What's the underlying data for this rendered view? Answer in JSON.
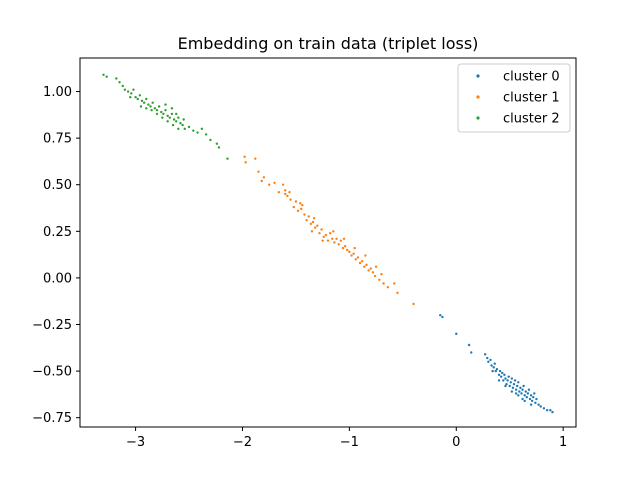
{
  "chart_data": {
    "type": "scatter",
    "title": "Embedding on train data (triplet loss)",
    "xlabel": "",
    "ylabel": "",
    "xlim": [
      -3.52,
      1.12
    ],
    "ylim": [
      -0.8,
      1.18
    ],
    "xticks": [
      -3,
      -2,
      -1,
      0,
      1
    ],
    "xtick_labels": [
      "−3",
      "−2",
      "−1",
      "0",
      "1"
    ],
    "yticks": [
      -0.75,
      -0.5,
      -0.25,
      0.0,
      0.25,
      0.5,
      0.75,
      1.0
    ],
    "ytick_labels": [
      "−0.75",
      "−0.50",
      "−0.25",
      "0.00",
      "0.25",
      "0.50",
      "0.75",
      "1.00"
    ],
    "grid": false,
    "legend_position": "top-right",
    "series": [
      {
        "name": "cluster 0",
        "color": "#1f77b4",
        "points": [
          [
            -0.15,
            -0.2
          ],
          [
            -0.13,
            -0.21
          ],
          [
            0.0,
            -0.3
          ],
          [
            0.12,
            -0.36
          ],
          [
            0.14,
            -0.4
          ],
          [
            0.27,
            -0.41
          ],
          [
            0.29,
            -0.43
          ],
          [
            0.3,
            -0.45
          ],
          [
            0.32,
            -0.44
          ],
          [
            0.33,
            -0.47
          ],
          [
            0.35,
            -0.48
          ],
          [
            0.36,
            -0.46
          ],
          [
            0.37,
            -0.5
          ],
          [
            0.38,
            -0.49
          ],
          [
            0.4,
            -0.52
          ],
          [
            0.41,
            -0.5
          ],
          [
            0.42,
            -0.53
          ],
          [
            0.43,
            -0.51
          ],
          [
            0.44,
            -0.55
          ],
          [
            0.45,
            -0.52
          ],
          [
            0.46,
            -0.54
          ],
          [
            0.47,
            -0.57
          ],
          [
            0.48,
            -0.55
          ],
          [
            0.49,
            -0.53
          ],
          [
            0.5,
            -0.58
          ],
          [
            0.51,
            -0.56
          ],
          [
            0.52,
            -0.54
          ],
          [
            0.53,
            -0.59
          ],
          [
            0.54,
            -0.57
          ],
          [
            0.55,
            -0.55
          ],
          [
            0.56,
            -0.6
          ],
          [
            0.57,
            -0.58
          ],
          [
            0.58,
            -0.56
          ],
          [
            0.59,
            -0.61
          ],
          [
            0.6,
            -0.59
          ],
          [
            0.61,
            -0.62
          ],
          [
            0.62,
            -0.6
          ],
          [
            0.63,
            -0.58
          ],
          [
            0.64,
            -0.63
          ],
          [
            0.65,
            -0.61
          ],
          [
            0.66,
            -0.64
          ],
          [
            0.67,
            -0.62
          ],
          [
            0.68,
            -0.6
          ],
          [
            0.69,
            -0.65
          ],
          [
            0.7,
            -0.63
          ],
          [
            0.71,
            -0.66
          ],
          [
            0.72,
            -0.64
          ],
          [
            0.73,
            -0.62
          ],
          [
            0.74,
            -0.67
          ],
          [
            0.75,
            -0.65
          ],
          [
            0.77,
            -0.68
          ],
          [
            0.79,
            -0.69
          ],
          [
            0.82,
            -0.7
          ],
          [
            0.85,
            -0.71
          ],
          [
            0.88,
            -0.71
          ],
          [
            0.9,
            -0.72
          ],
          [
            0.52,
            -0.61
          ],
          [
            0.58,
            -0.63
          ],
          [
            0.64,
            -0.66
          ],
          [
            0.46,
            -0.58
          ],
          [
            0.4,
            -0.55
          ],
          [
            0.34,
            -0.5
          ],
          [
            0.62,
            -0.65
          ],
          [
            0.7,
            -0.68
          ],
          [
            0.56,
            -0.62
          ]
        ]
      },
      {
        "name": "cluster 1",
        "color": "#ff7f0e",
        "points": [
          [
            -1.98,
            0.65
          ],
          [
            -1.97,
            0.62
          ],
          [
            -1.88,
            0.64
          ],
          [
            -1.85,
            0.57
          ],
          [
            -1.82,
            0.52
          ],
          [
            -1.8,
            0.54
          ],
          [
            -1.75,
            0.5
          ],
          [
            -1.7,
            0.51
          ],
          [
            -1.66,
            0.46
          ],
          [
            -1.62,
            0.5
          ],
          [
            -1.6,
            0.47
          ],
          [
            -1.58,
            0.44
          ],
          [
            -1.55,
            0.42
          ],
          [
            -1.52,
            0.38
          ],
          [
            -1.5,
            0.41
          ],
          [
            -1.48,
            0.36
          ],
          [
            -1.45,
            0.37
          ],
          [
            -1.42,
            0.34
          ],
          [
            -1.4,
            0.31
          ],
          [
            -1.38,
            0.33
          ],
          [
            -1.36,
            0.29
          ],
          [
            -1.34,
            0.3
          ],
          [
            -1.32,
            0.27
          ],
          [
            -1.3,
            0.28
          ],
          [
            -1.28,
            0.24
          ],
          [
            -1.26,
            0.26
          ],
          [
            -1.24,
            0.22
          ],
          [
            -1.22,
            0.23
          ],
          [
            -1.2,
            0.2
          ],
          [
            -1.18,
            0.24
          ],
          [
            -1.16,
            0.21
          ],
          [
            -1.14,
            0.19
          ],
          [
            -1.12,
            0.21
          ],
          [
            -1.1,
            0.18
          ],
          [
            -1.08,
            0.2
          ],
          [
            -1.06,
            0.16
          ],
          [
            -1.04,
            0.17
          ],
          [
            -1.02,
            0.15
          ],
          [
            -1.0,
            0.14
          ],
          [
            -0.98,
            0.12
          ],
          [
            -0.96,
            0.13
          ],
          [
            -0.94,
            0.1
          ],
          [
            -0.92,
            0.11
          ],
          [
            -0.9,
            0.08
          ],
          [
            -0.88,
            0.09
          ],
          [
            -0.86,
            0.06
          ],
          [
            -0.84,
            0.07
          ],
          [
            -0.82,
            0.04
          ],
          [
            -0.8,
            0.05
          ],
          [
            -0.78,
            0.03
          ],
          [
            -0.76,
            0.01
          ],
          [
            -0.72,
            -0.01
          ],
          [
            -0.68,
            -0.03
          ],
          [
            -0.64,
            -0.05
          ],
          [
            -0.58,
            -0.03
          ],
          [
            -0.55,
            -0.08
          ],
          [
            -0.4,
            -0.14
          ],
          [
            -1.56,
            0.46
          ],
          [
            -1.44,
            0.39
          ],
          [
            -1.35,
            0.25
          ],
          [
            -1.25,
            0.2
          ],
          [
            -1.15,
            0.25
          ],
          [
            -1.05,
            0.21
          ],
          [
            -0.95,
            0.16
          ],
          [
            -0.85,
            0.12
          ],
          [
            -0.75,
            0.06
          ],
          [
            -0.7,
            0.02
          ],
          [
            -1.6,
            0.45
          ],
          [
            -1.46,
            0.4
          ],
          [
            -1.33,
            0.32
          ]
        ]
      },
      {
        "name": "cluster 2",
        "color": "#2ca02c",
        "points": [
          [
            -3.3,
            1.09
          ],
          [
            -3.27,
            1.08
          ],
          [
            -3.18,
            1.07
          ],
          [
            -3.15,
            1.05
          ],
          [
            -3.12,
            1.03
          ],
          [
            -3.1,
            1.01
          ],
          [
            -3.07,
            1.0
          ],
          [
            -3.04,
            0.99
          ],
          [
            -3.02,
            1.01
          ],
          [
            -3.0,
            0.97
          ],
          [
            -2.98,
            0.96
          ],
          [
            -2.96,
            0.98
          ],
          [
            -2.94,
            0.95
          ],
          [
            -2.92,
            0.94
          ],
          [
            -2.9,
            0.96
          ],
          [
            -2.88,
            0.93
          ],
          [
            -2.86,
            0.92
          ],
          [
            -2.84,
            0.94
          ],
          [
            -2.82,
            0.91
          ],
          [
            -2.8,
            0.9
          ],
          [
            -2.78,
            0.92
          ],
          [
            -2.76,
            0.89
          ],
          [
            -2.74,
            0.88
          ],
          [
            -2.72,
            0.9
          ],
          [
            -2.7,
            0.87
          ],
          [
            -2.68,
            0.86
          ],
          [
            -2.66,
            0.88
          ],
          [
            -2.64,
            0.85
          ],
          [
            -2.62,
            0.84
          ],
          [
            -2.6,
            0.86
          ],
          [
            -2.58,
            0.83
          ],
          [
            -2.56,
            0.82
          ],
          [
            -2.54,
            0.8
          ],
          [
            -2.5,
            0.81
          ],
          [
            -2.46,
            0.79
          ],
          [
            -2.42,
            0.78
          ],
          [
            -2.38,
            0.8
          ],
          [
            -2.34,
            0.77
          ],
          [
            -2.3,
            0.74
          ],
          [
            -2.24,
            0.72
          ],
          [
            -2.22,
            0.7
          ],
          [
            -2.14,
            0.64
          ],
          [
            -2.85,
            0.9
          ],
          [
            -2.75,
            0.86
          ],
          [
            -2.65,
            0.82
          ],
          [
            -2.95,
            0.92
          ],
          [
            -3.05,
            0.97
          ],
          [
            -2.7,
            0.84
          ],
          [
            -2.6,
            0.8
          ],
          [
            -2.8,
            0.88
          ],
          [
            -2.9,
            0.91
          ],
          [
            -2.66,
            0.91
          ],
          [
            -2.72,
            0.93
          ],
          [
            -2.55,
            0.85
          ],
          [
            -2.62,
            0.88
          ]
        ]
      }
    ]
  }
}
